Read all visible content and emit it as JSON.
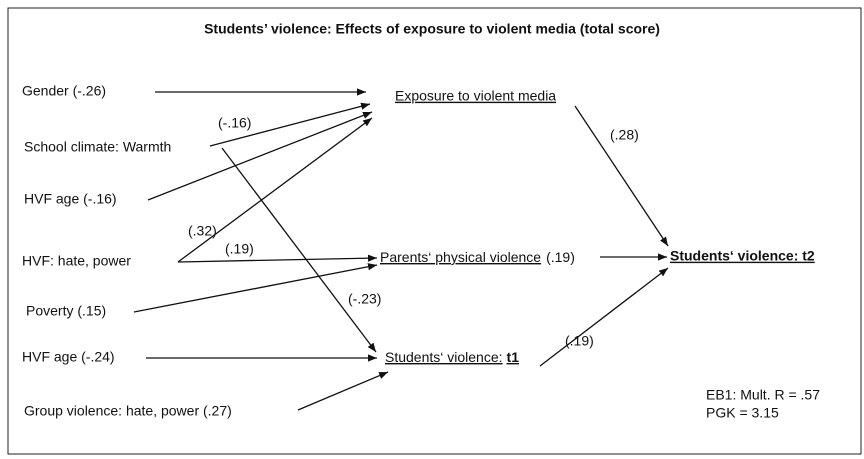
{
  "title": "Students’ violence: Effects of exposure to violent media (total score)",
  "predictors": [
    "Gender (-.26)",
    "School climate: Warmth",
    "HVF age (-.16)",
    "HVF: hate, power",
    "Poverty (.15)",
    "HVF age (-.24)",
    "Group violence: hate, power (.27)"
  ],
  "mediators": {
    "exposure": "Exposure to violent media",
    "parents": {
      "label": "Parents‘ physical violence",
      "coef": "(.19)"
    },
    "t1": {
      "label": "Students‘ violence:",
      "time": "t1"
    }
  },
  "outcome": "Students‘ violence: t2",
  "coefficients": [
    "(-.16)",
    "(.28)",
    "(.32)",
    "(.19)",
    "(-.23)",
    "(.19)"
  ],
  "note": [
    "EB1: Mult. R = .57",
    "PGK = 3.15"
  ]
}
